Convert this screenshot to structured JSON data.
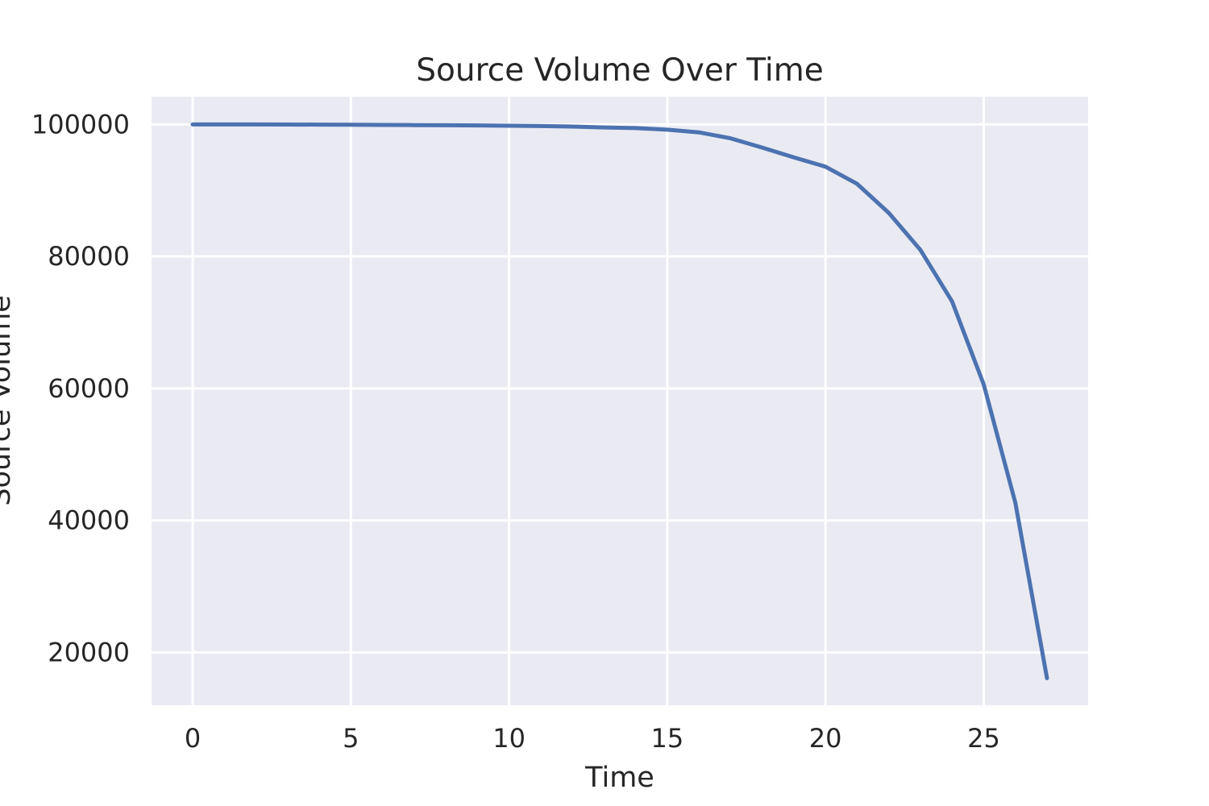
{
  "chart_data": {
    "type": "line",
    "title": "Source Volume Over Time",
    "xlabel": "Time",
    "ylabel": "Source Volume",
    "xlim": [
      -1.3,
      28.3
    ],
    "ylim": [
      12000,
      104200
    ],
    "xticks": [
      0,
      5,
      10,
      15,
      20,
      25
    ],
    "yticks": [
      20000,
      40000,
      60000,
      80000,
      100000
    ],
    "grid": true,
    "colors": {
      "plot_background": "#eaeaf2",
      "grid": "#ffffff",
      "line": "#4c72b0"
    },
    "series": [
      {
        "x": [
          0,
          1,
          2,
          3,
          4,
          5,
          6,
          7,
          8,
          9,
          10,
          11,
          12,
          13,
          14,
          15,
          16,
          17,
          18,
          19,
          20,
          21,
          22,
          23,
          24,
          25,
          26,
          27
        ],
        "values": [
          100000,
          100000,
          100000,
          99990,
          99970,
          99950,
          99930,
          99900,
          99880,
          99850,
          99800,
          99750,
          99680,
          99550,
          99450,
          99200,
          98800,
          97900,
          96500,
          95000,
          93600,
          91000,
          86600,
          81000,
          73200,
          60600,
          42700,
          16100
        ]
      }
    ]
  }
}
